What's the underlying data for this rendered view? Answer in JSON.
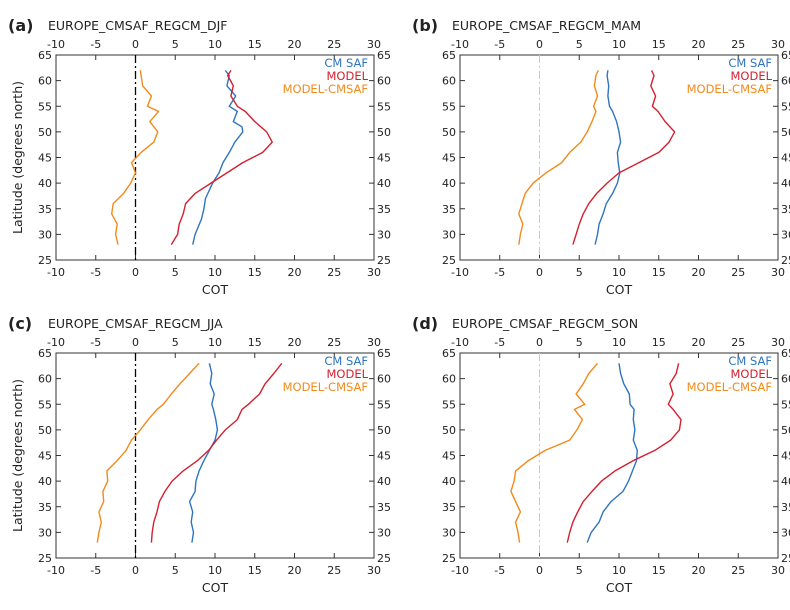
{
  "colors": {
    "cmsaf": "#2e74c0",
    "model": "#d41f2f",
    "diff": "#f28a1c",
    "axis": "#333333",
    "zero_line": "#000000"
  },
  "chart_data": [
    {
      "type": "line",
      "panel_label": "(a)",
      "title": "EUROPE_CMSAF_REGCM_DJF",
      "xlabel": "COT",
      "ylabel": "Latitude (degrees north)",
      "xlim": [
        -10,
        30
      ],
      "ylim": [
        25,
        65
      ],
      "xticks": [
        "-10",
        "-5",
        "0",
        "5",
        "10",
        "15",
        "20",
        "25",
        "30"
      ],
      "yticks": [
        "25",
        "30",
        "35",
        "40",
        "45",
        "50",
        "55",
        "60",
        "65"
      ],
      "right_yticks": [
        "25",
        "30",
        "35",
        "40",
        "45",
        "50",
        "55",
        "60",
        "65"
      ],
      "zero_line_style": "dash-dot",
      "legend": [
        "CM SAF",
        "MODEL",
        "MODEL-CMSAF"
      ],
      "legend_position": "top-right",
      "series": [
        {
          "name": "CM SAF",
          "color_key": "cmsaf",
          "x": [
            7.2,
            7.5,
            8.3,
            8.6,
            8.8,
            9.7,
            10.5,
            11.0,
            11.8,
            12.5,
            13.5,
            13.4,
            12.3,
            12.8,
            11.8,
            12.6,
            11.5,
            11.8,
            11.3
          ],
          "y": [
            28,
            30,
            33,
            35,
            37,
            40,
            42,
            44,
            46,
            48,
            50,
            51,
            52,
            54,
            55,
            57,
            59,
            61,
            62
          ]
        },
        {
          "name": "MODEL",
          "color_key": "model",
          "x": [
            4.5,
            5.3,
            5.5,
            6.0,
            6.3,
            7.5,
            9.5,
            11.5,
            13.5,
            16.0,
            17.2,
            16.5,
            15.0,
            13.8,
            12.8,
            12.0,
            12.3,
            11.6,
            12.0
          ],
          "y": [
            28,
            30,
            32,
            34,
            36,
            38,
            40,
            42,
            44,
            46,
            48,
            50,
            52,
            54,
            55,
            57,
            59,
            61,
            62
          ]
        },
        {
          "name": "MODEL-CMSAF",
          "color_key": "diff",
          "x": [
            -2.2,
            -2.5,
            -2.3,
            -3.0,
            -2.8,
            -1.5,
            -0.6,
            0.0,
            -0.5,
            0.7,
            2.3,
            2.8,
            1.8,
            2.9,
            1.5,
            2.0,
            0.9,
            0.7,
            0.6
          ],
          "y": [
            28,
            30,
            32,
            34,
            36,
            38,
            40,
            42,
            44,
            46,
            48,
            50,
            52,
            54,
            55,
            57,
            59,
            61,
            62
          ]
        }
      ]
    },
    {
      "type": "line",
      "panel_label": "(b)",
      "title": "EUROPE_CMSAF_REGCM_MAM",
      "xlabel": "COT",
      "ylabel": "",
      "xlim": [
        -10,
        30
      ],
      "ylim": [
        25,
        65
      ],
      "xticks": [
        "-10",
        "-5",
        "0",
        "5",
        "10",
        "15",
        "20",
        "25",
        "30"
      ],
      "yticks": [
        "25",
        "30",
        "35",
        "40",
        "45",
        "50",
        "55",
        "60",
        "65"
      ],
      "right_yticks": [
        "25",
        "30",
        "35",
        "40",
        "45",
        "50",
        "55",
        "60",
        "65"
      ],
      "zero_line_style": "faint-dash-dot",
      "legend": [
        "CM SAF",
        "MODEL",
        "MODEL-CMSAF"
      ],
      "legend_position": "top-right",
      "series": [
        {
          "name": "CM SAF",
          "color_key": "cmsaf",
          "x": [
            7.0,
            7.3,
            7.5,
            8.0,
            8.4,
            9.2,
            9.8,
            10.1,
            9.9,
            9.8,
            10.2,
            10.0,
            9.7,
            9.2,
            8.8,
            8.6,
            8.7,
            8.5,
            8.6
          ],
          "y": [
            28,
            30,
            32,
            34,
            36,
            38,
            40,
            42,
            44,
            46,
            48,
            50,
            52,
            54,
            55,
            57,
            59,
            61,
            62
          ]
        },
        {
          "name": "MODEL",
          "color_key": "model",
          "x": [
            4.2,
            4.6,
            5.0,
            5.5,
            6.2,
            7.2,
            8.5,
            10.0,
            12.5,
            15.0,
            16.3,
            17.0,
            15.8,
            14.9,
            14.2,
            14.6,
            14.0,
            14.4,
            14.1
          ],
          "y": [
            28,
            30,
            32,
            34,
            36,
            38,
            40,
            42,
            44,
            46,
            48,
            50,
            52,
            54,
            55,
            57,
            59,
            61,
            62
          ]
        },
        {
          "name": "MODEL-CMSAF",
          "color_key": "diff",
          "x": [
            -2.6,
            -2.4,
            -2.1,
            -2.6,
            -2.2,
            -1.8,
            -0.8,
            0.8,
            2.8,
            3.8,
            5.2,
            6.0,
            6.6,
            7.1,
            6.8,
            7.3,
            6.9,
            7.1,
            7.4
          ],
          "y": [
            28,
            30,
            32,
            34,
            36,
            38,
            40,
            42,
            44,
            46,
            48,
            50,
            52,
            54,
            55,
            57,
            59,
            61,
            62
          ]
        }
      ]
    },
    {
      "type": "line",
      "panel_label": "(c)",
      "title": "EUROPE_CMSAF_REGCM_JJA",
      "xlabel": "COT",
      "ylabel": "Latitude (degrees north)",
      "xlim": [
        -10,
        30
      ],
      "ylim": [
        25,
        65
      ],
      "xticks": [
        "-10",
        "-5",
        "0",
        "5",
        "10",
        "15",
        "20",
        "25",
        "30"
      ],
      "yticks": [
        "25",
        "30",
        "35",
        "40",
        "45",
        "50",
        "55",
        "60",
        "65"
      ],
      "right_yticks": [
        "25",
        "30",
        "35",
        "40",
        "45",
        "50",
        "55",
        "60",
        "65"
      ],
      "zero_line_style": "dash-dot",
      "legend": [
        "CM SAF",
        "MODEL",
        "MODEL-CMSAF"
      ],
      "legend_position": "top-right",
      "series": [
        {
          "name": "CM SAF",
          "color_key": "cmsaf",
          "x": [
            7.1,
            7.3,
            7.0,
            7.2,
            6.8,
            7.5,
            7.6,
            8.0,
            8.6,
            9.3,
            10.0,
            10.3,
            10.1,
            9.8,
            9.6,
            9.9,
            9.4,
            9.6,
            9.3
          ],
          "y": [
            28,
            30,
            32,
            34,
            36,
            38,
            40,
            42,
            44,
            46,
            48,
            50,
            52,
            54,
            55,
            57,
            59,
            61,
            63
          ]
        },
        {
          "name": "MODEL",
          "color_key": "model",
          "x": [
            2.0,
            2.1,
            2.3,
            2.7,
            3.0,
            3.7,
            4.6,
            6.0,
            7.8,
            9.2,
            10.2,
            11.3,
            12.8,
            13.4,
            14.2,
            15.6,
            16.3,
            17.4,
            18.4
          ],
          "y": [
            28,
            30,
            32,
            34,
            36,
            38,
            40,
            42,
            44,
            46,
            48,
            50,
            52,
            54,
            55,
            57,
            59,
            61,
            63
          ]
        },
        {
          "name": "MODEL-CMSAF",
          "color_key": "diff",
          "x": [
            -4.8,
            -4.6,
            -4.3,
            -4.6,
            -4.0,
            -4.1,
            -3.5,
            -3.6,
            -2.3,
            -1.2,
            -0.5,
            0.6,
            1.6,
            2.7,
            3.5,
            4.5,
            5.6,
            6.8,
            8.0
          ],
          "y": [
            28,
            30,
            32,
            34,
            36,
            38,
            40,
            42,
            44,
            46,
            48,
            50,
            52,
            54,
            55,
            57,
            59,
            61,
            63
          ]
        }
      ]
    },
    {
      "type": "line",
      "panel_label": "(d)",
      "title": "EUROPE_CMSAF_REGCM_SON",
      "xlabel": "COT",
      "ylabel": "",
      "xlim": [
        -10,
        30
      ],
      "ylim": [
        25,
        65
      ],
      "xticks": [
        "-10",
        "-5",
        "0",
        "5",
        "10",
        "15",
        "20",
        "25",
        "30"
      ],
      "yticks": [
        "25",
        "30",
        "35",
        "40",
        "45",
        "50",
        "55",
        "60",
        "65"
      ],
      "right_yticks": [
        "25",
        "30",
        "35",
        "40",
        "45",
        "50",
        "55",
        "60",
        "65"
      ],
      "zero_line_style": "faint-dash-dot",
      "legend": [
        "CM SAF",
        "MODEL",
        "MODEL-CMSAF"
      ],
      "legend_position": "top-right",
      "series": [
        {
          "name": "CM SAF",
          "color_key": "cmsaf",
          "x": [
            6.0,
            6.5,
            7.5,
            8.0,
            9.0,
            10.5,
            11.2,
            11.7,
            12.2,
            12.3,
            11.8,
            12.0,
            11.8,
            11.9,
            11.4,
            11.3,
            10.6,
            10.2,
            10.0
          ],
          "y": [
            28,
            30,
            32,
            34,
            36,
            38,
            40,
            42,
            44,
            46,
            48,
            50,
            52,
            54,
            55,
            57,
            59,
            61,
            63
          ]
        },
        {
          "name": "MODEL",
          "color_key": "model",
          "x": [
            3.5,
            3.8,
            4.2,
            4.8,
            5.5,
            6.6,
            7.8,
            9.5,
            11.8,
            14.5,
            16.5,
            17.6,
            17.8,
            16.8,
            16.2,
            16.8,
            16.4,
            17.2,
            17.5
          ],
          "y": [
            28,
            30,
            32,
            34,
            36,
            38,
            40,
            42,
            44,
            46,
            48,
            50,
            52,
            54,
            55,
            57,
            59,
            61,
            63
          ]
        },
        {
          "name": "MODEL-CMSAF",
          "color_key": "diff",
          "x": [
            -2.5,
            -2.7,
            -3.0,
            -2.4,
            -3.0,
            -3.6,
            -3.2,
            -3.0,
            -1.4,
            0.7,
            3.8,
            4.7,
            5.4,
            4.4,
            5.7,
            4.6,
            5.5,
            6.2,
            7.3
          ],
          "y": [
            28,
            30,
            32,
            34,
            36,
            38,
            40,
            42,
            44,
            46,
            48,
            50,
            52,
            54,
            55,
            57,
            59,
            61,
            63
          ]
        }
      ]
    }
  ]
}
